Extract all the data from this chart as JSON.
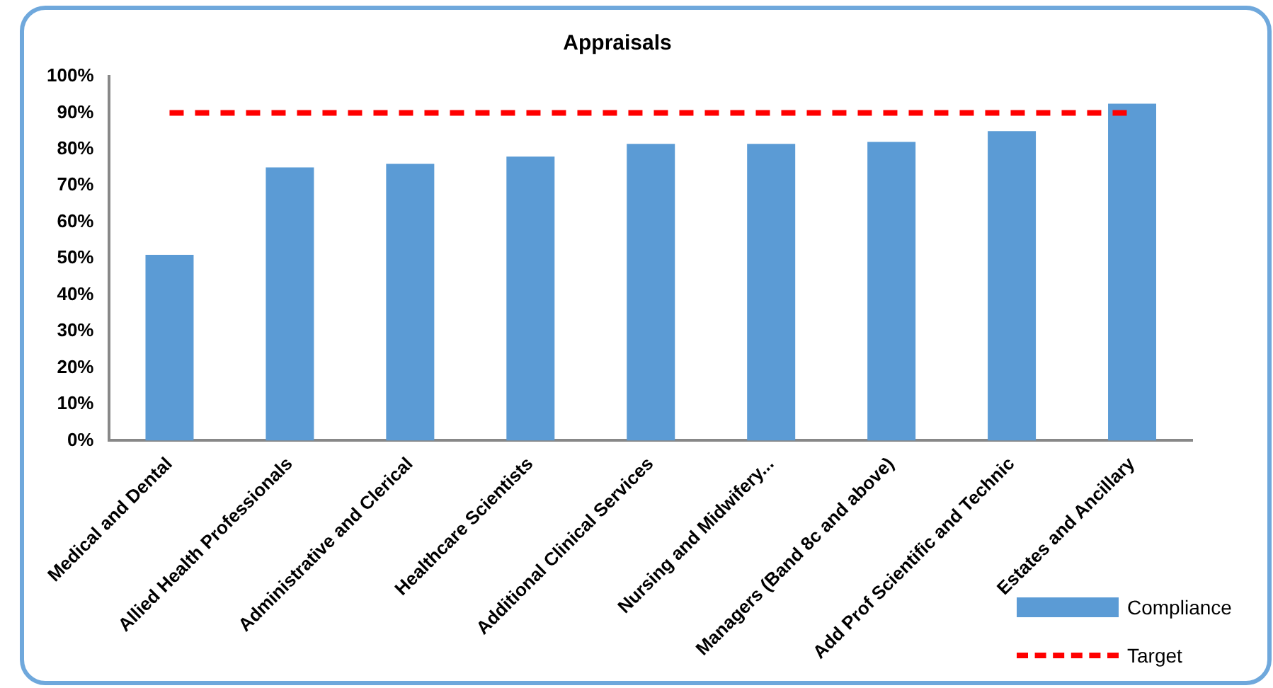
{
  "chart_data": {
    "type": "bar",
    "title": "Appraisals",
    "categories": [
      "Medical and Dental",
      "Allied Health Professionals",
      "Administrative and Clerical",
      "Healthcare Scientists",
      "Additional Clinical Services",
      "Nursing and Midwifery...",
      "Managers (Band 8c and above)",
      "Add Prof Scientific and Technic",
      "Estates and Ancillary"
    ],
    "series": [
      {
        "name": "Compliance",
        "color": "#5b9bd5",
        "values": [
          51,
          75,
          76,
          78,
          81.5,
          81.5,
          82,
          85,
          92.5
        ]
      },
      {
        "name": "Target",
        "type": "line",
        "color": "#ff0000",
        "line_style": "dashed",
        "marker": "none",
        "values": [
          90,
          90,
          90,
          90,
          90,
          90,
          90,
          90,
          90
        ]
      }
    ],
    "ylim": [
      0,
      100
    ],
    "yticks": [
      {
        "value": 0,
        "label": "0%"
      },
      {
        "value": 10,
        "label": "10%"
      },
      {
        "value": 20,
        "label": "20%"
      },
      {
        "value": 30,
        "label": "30%"
      },
      {
        "value": 40,
        "label": "40%"
      },
      {
        "value": 50,
        "label": "50%"
      },
      {
        "value": 60,
        "label": "60%"
      },
      {
        "value": 70,
        "label": "70%"
      },
      {
        "value": 80,
        "label": "80%"
      },
      {
        "value": 90,
        "label": "90%"
      },
      {
        "value": 100,
        "label": "100%"
      }
    ],
    "grid": false,
    "legend": "bottom right"
  }
}
